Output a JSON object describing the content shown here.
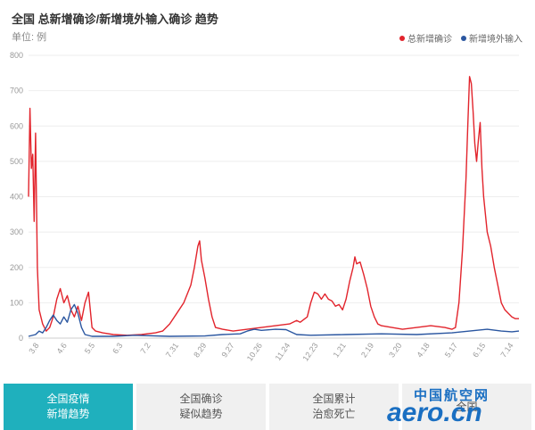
{
  "title": "全国 总新增确诊/新增境外输入确诊 趋势",
  "unit_label": "单位: 例",
  "legend": [
    {
      "name": "总新增确诊",
      "color": "#e2242c"
    },
    {
      "name": "新增境外输入",
      "color": "#2a56a0"
    }
  ],
  "tabs": [
    {
      "line1": "全国疫情",
      "line2": "新增趋势",
      "active": true
    },
    {
      "line1": "全国确诊",
      "line2": "疑似趋势",
      "active": false
    },
    {
      "line1": "全国累计",
      "line2": "治愈死亡",
      "active": false
    },
    {
      "line1": "全国",
      "line2": "",
      "active": false
    }
  ],
  "watermark": {
    "cn": "中国航空网",
    "en": "aero.cn"
  },
  "chart_data": {
    "type": "line",
    "ylim": [
      0,
      800
    ],
    "yticks": [
      0,
      100,
      200,
      300,
      400,
      500,
      600,
      700,
      800
    ],
    "xticks": [
      "3.8",
      "4.6",
      "5.5",
      "6.3",
      "7.2",
      "7.31",
      "8.29",
      "9.27",
      "10.26",
      "11.24",
      "12.23",
      "1.21",
      "2.19",
      "3.20",
      "4.18",
      "5.17",
      "6.15",
      "7.14"
    ],
    "grid": true,
    "series": [
      {
        "name": "总新增确诊",
        "color": "#e2242c",
        "points": [
          [
            0,
            400
          ],
          [
            0.4,
            650
          ],
          [
            0.8,
            480
          ],
          [
            1.2,
            520
          ],
          [
            1.6,
            330
          ],
          [
            2,
            580
          ],
          [
            2.5,
            200
          ],
          [
            3,
            80
          ],
          [
            4,
            40
          ],
          [
            5,
            20
          ],
          [
            6,
            30
          ],
          [
            7,
            60
          ],
          [
            8,
            110
          ],
          [
            9,
            140
          ],
          [
            10,
            100
          ],
          [
            11,
            120
          ],
          [
            12,
            80
          ],
          [
            13,
            60
          ],
          [
            14,
            90
          ],
          [
            15,
            50
          ],
          [
            16,
            100
          ],
          [
            17,
            130
          ],
          [
            18,
            30
          ],
          [
            19,
            20
          ],
          [
            21,
            15
          ],
          [
            24,
            10
          ],
          [
            28,
            8
          ],
          [
            32,
            10
          ],
          [
            36,
            15
          ],
          [
            38,
            20
          ],
          [
            40,
            40
          ],
          [
            42,
            70
          ],
          [
            44,
            100
          ],
          [
            46,
            150
          ],
          [
            47,
            200
          ],
          [
            48,
            260
          ],
          [
            48.5,
            275
          ],
          [
            49,
            220
          ],
          [
            50,
            170
          ],
          [
            51,
            110
          ],
          [
            52,
            60
          ],
          [
            53,
            30
          ],
          [
            55,
            25
          ],
          [
            58,
            20
          ],
          [
            62,
            25
          ],
          [
            66,
            30
          ],
          [
            70,
            35
          ],
          [
            74,
            40
          ],
          [
            76,
            50
          ],
          [
            77,
            45
          ],
          [
            79,
            60
          ],
          [
            80,
            100
          ],
          [
            81,
            130
          ],
          [
            82,
            125
          ],
          [
            83,
            110
          ],
          [
            84,
            125
          ],
          [
            85,
            110
          ],
          [
            86,
            105
          ],
          [
            87,
            90
          ],
          [
            88,
            95
          ],
          [
            89,
            80
          ],
          [
            90,
            110
          ],
          [
            91,
            160
          ],
          [
            92,
            200
          ],
          [
            92.5,
            230
          ],
          [
            93,
            210
          ],
          [
            94,
            215
          ],
          [
            95,
            180
          ],
          [
            96,
            140
          ],
          [
            97,
            90
          ],
          [
            98,
            60
          ],
          [
            99,
            40
          ],
          [
            100,
            35
          ],
          [
            103,
            30
          ],
          [
            106,
            25
          ],
          [
            110,
            30
          ],
          [
            114,
            35
          ],
          [
            118,
            30
          ],
          [
            120,
            25
          ],
          [
            121,
            30
          ],
          [
            122,
            100
          ],
          [
            123,
            250
          ],
          [
            124,
            450
          ],
          [
            124.5,
            600
          ],
          [
            125,
            740
          ],
          [
            125.5,
            720
          ],
          [
            126,
            640
          ],
          [
            126.5,
            550
          ],
          [
            127,
            500
          ],
          [
            127.5,
            560
          ],
          [
            128,
            610
          ],
          [
            128.5,
            480
          ],
          [
            129,
            400
          ],
          [
            130,
            300
          ],
          [
            131,
            260
          ],
          [
            132,
            200
          ],
          [
            133,
            150
          ],
          [
            134,
            100
          ],
          [
            135,
            80
          ],
          [
            136,
            70
          ],
          [
            137,
            60
          ],
          [
            138,
            55
          ],
          [
            139,
            55
          ]
        ]
      },
      {
        "name": "新增境外输入",
        "color": "#2a56a0",
        "points": [
          [
            0,
            5
          ],
          [
            2,
            10
          ],
          [
            3,
            20
          ],
          [
            4,
            15
          ],
          [
            5,
            30
          ],
          [
            6,
            50
          ],
          [
            7,
            65
          ],
          [
            8,
            50
          ],
          [
            9,
            40
          ],
          [
            10,
            60
          ],
          [
            11,
            45
          ],
          [
            12,
            80
          ],
          [
            13,
            95
          ],
          [
            14,
            70
          ],
          [
            15,
            30
          ],
          [
            16,
            10
          ],
          [
            18,
            5
          ],
          [
            24,
            5
          ],
          [
            30,
            8
          ],
          [
            40,
            5
          ],
          [
            50,
            6
          ],
          [
            55,
            10
          ],
          [
            60,
            12
          ],
          [
            62,
            20
          ],
          [
            64,
            25
          ],
          [
            66,
            22
          ],
          [
            70,
            25
          ],
          [
            73,
            24
          ],
          [
            76,
            10
          ],
          [
            80,
            8
          ],
          [
            90,
            10
          ],
          [
            100,
            12
          ],
          [
            110,
            10
          ],
          [
            120,
            15
          ],
          [
            125,
            20
          ],
          [
            130,
            25
          ],
          [
            134,
            20
          ],
          [
            137,
            18
          ],
          [
            139,
            20
          ]
        ]
      }
    ]
  }
}
